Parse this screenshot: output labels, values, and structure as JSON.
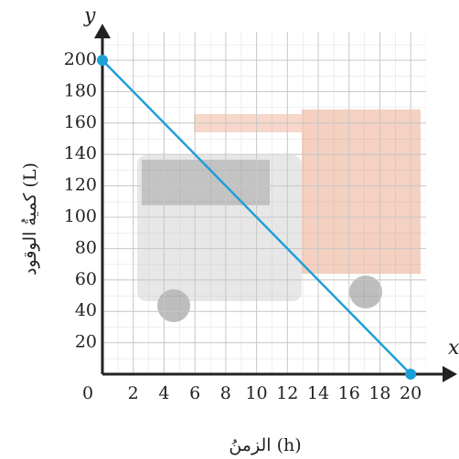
{
  "chart_data": {
    "type": "line",
    "x_axis_symbol": "x",
    "y_axis_symbol": "y",
    "x_label": "الزمنُ (h)",
    "y_label": "كميةُ الوقود (L)",
    "x": [
      0,
      20
    ],
    "series": [
      {
        "color": "#1e9fd8",
        "values": [
          200,
          0
        ]
      }
    ],
    "xlim": [
      0,
      21
    ],
    "ylim": [
      0,
      218
    ],
    "xticks": [
      0,
      2,
      4,
      6,
      8,
      10,
      12,
      14,
      16,
      18,
      20
    ],
    "yticks": [
      20,
      40,
      60,
      80,
      100,
      120,
      140,
      160,
      180,
      200
    ],
    "grid": true
  }
}
